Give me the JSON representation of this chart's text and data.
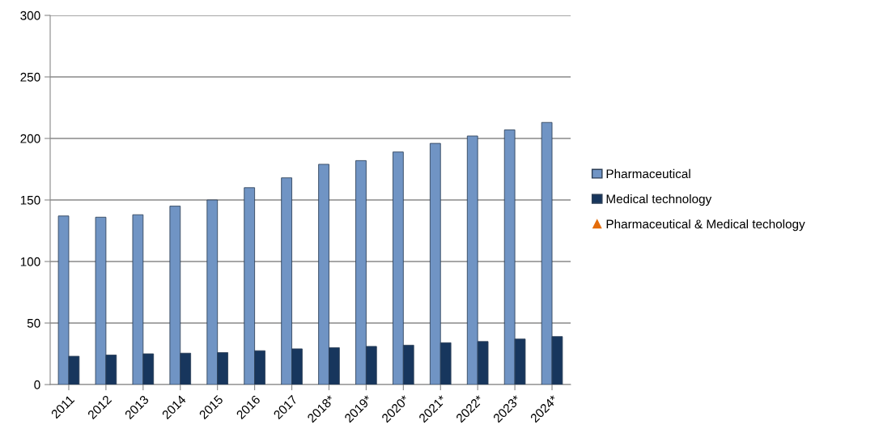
{
  "chart_data": {
    "type": "bar",
    "categories": [
      "2011",
      "2012",
      "2013",
      "2014",
      "2015",
      "2016",
      "2017",
      "2018*",
      "2019*",
      "2020*",
      "2021*",
      "2022*",
      "2023*",
      "2024*"
    ],
    "series": [
      {
        "name": "Pharmaceutical",
        "color": "#7094c4",
        "values": [
          137,
          136,
          138,
          145,
          150,
          160,
          168,
          179,
          182,
          189,
          196,
          202,
          207,
          213
        ]
      },
      {
        "name": "Medical technology",
        "color": "#17365d",
        "values": [
          23,
          24,
          25,
          25.5,
          26,
          27.5,
          29,
          30,
          31,
          32,
          34,
          35,
          37,
          39
        ]
      },
      {
        "name": "Pharmaceutical & Medical techology",
        "type": "scatter",
        "marker": "triangle",
        "color": "#e46c0a",
        "values": [
          null,
          null,
          null,
          null,
          null,
          null,
          null,
          null,
          null,
          null,
          null,
          null,
          null,
          null
        ]
      }
    ],
    "ylim": [
      0,
      300
    ],
    "yticks": [
      0,
      50,
      100,
      150,
      200,
      250,
      300
    ],
    "grid": "y",
    "legend": "right"
  }
}
